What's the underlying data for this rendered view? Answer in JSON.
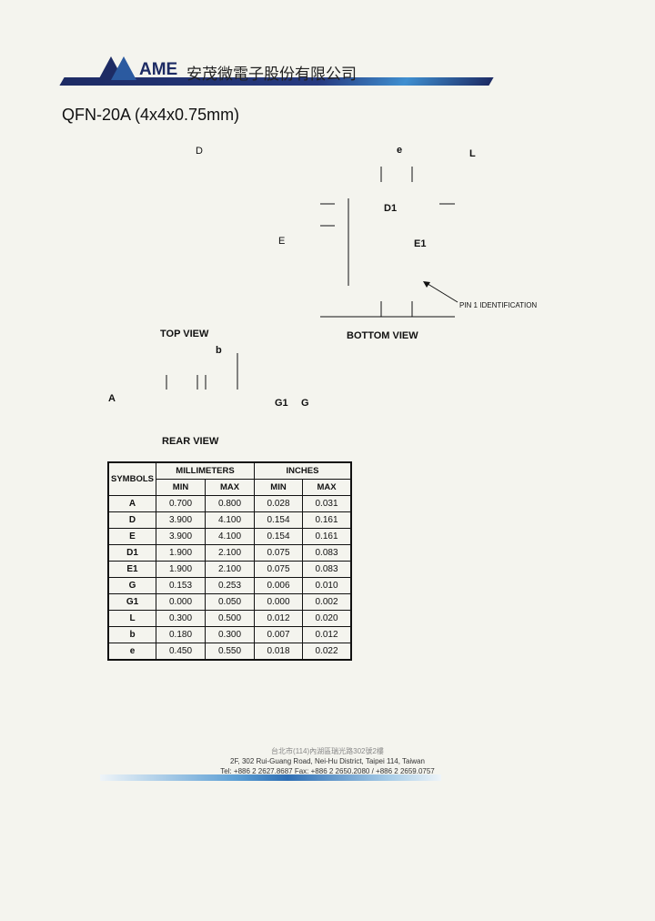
{
  "header": {
    "brand": "AME",
    "company_cn": "安茂微電子股份有限公司",
    "title": "QFN-20A (4x4x0.75mm)"
  },
  "drawing": {
    "D": "D",
    "e": "e",
    "L": "L",
    "D1": "D1",
    "E": "E",
    "E1": "E1",
    "pin1": "PIN 1 IDENTIFICATION",
    "top_view": "TOP VIEW",
    "bottom_view": "BOTTOM VIEW",
    "b": "b",
    "A": "A",
    "G1": "G1",
    "G": "G",
    "rear_view": "REAR VIEW"
  },
  "table": {
    "symbols": "SYMBOLS",
    "mm": "MILLIMETERS",
    "inches": "INCHES",
    "min": "MIN",
    "max": "MAX",
    "rows": [
      [
        "A",
        "0.700",
        "0.800",
        "0.028",
        "0.031"
      ],
      [
        "D",
        "3.900",
        "4.100",
        "0.154",
        "0.161"
      ],
      [
        "E",
        "3.900",
        "4.100",
        "0.154",
        "0.161"
      ],
      [
        "D1",
        "1.900",
        "2.100",
        "0.075",
        "0.083"
      ],
      [
        "E1",
        "1.900",
        "2.100",
        "0.075",
        "0.083"
      ],
      [
        "G",
        "0.153",
        "0.253",
        "0.006",
        "0.010"
      ],
      [
        "G1",
        "0.000",
        "0.050",
        "0.000",
        "0.002"
      ],
      [
        "L",
        "0.300",
        "0.500",
        "0.012",
        "0.020"
      ],
      [
        "b",
        "0.180",
        "0.300",
        "0.007",
        "0.012"
      ],
      [
        "e",
        "0.450",
        "0.550",
        "0.018",
        "0.022"
      ]
    ]
  },
  "footer": {
    "address_cn": "台北市(114)內湖區瑞光路302號2樓",
    "address_en": "2F, 302 Rui-Guang Road, Nei-Hu District, Taipei 114, Taiwan",
    "contact": "Tel: +886 2 2627.8687  Fax: +886 2 2650.2080 / +886 2 2659.0757"
  }
}
